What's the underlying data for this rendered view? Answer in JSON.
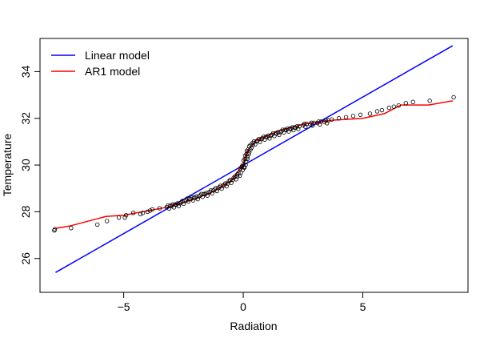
{
  "chart_data": {
    "type": "scatter",
    "title": "",
    "xlabel": "Radiation",
    "ylabel": "Temperature",
    "xlim": [
      -8.5,
      9.4
    ],
    "ylim": [
      24.55,
      35.42
    ],
    "xticks": [
      -5,
      0,
      5
    ],
    "yticks": [
      26,
      28,
      30,
      32,
      34
    ],
    "grid": false,
    "legend_position": "top-left",
    "points": [
      [
        -7.9,
        27.2
      ],
      [
        -7.88,
        27.25
      ],
      [
        -7.2,
        27.3
      ],
      [
        -6.1,
        27.45
      ],
      [
        -5.7,
        27.6
      ],
      [
        -5.2,
        27.75
      ],
      [
        -4.95,
        27.75
      ],
      [
        -4.9,
        27.85
      ],
      [
        -4.6,
        27.95
      ],
      [
        -4.3,
        27.9
      ],
      [
        -4.2,
        27.95
      ],
      [
        -4.0,
        28.0
      ],
      [
        -3.9,
        28.05
      ],
      [
        -3.8,
        28.1
      ],
      [
        -3.5,
        28.15
      ],
      [
        -3.2,
        28.2
      ],
      [
        -3.0,
        28.25
      ],
      [
        -2.8,
        28.3
      ],
      [
        -2.6,
        28.4
      ],
      [
        -2.4,
        28.5
      ],
      [
        -2.2,
        28.55
      ],
      [
        -2.0,
        28.6
      ],
      [
        -1.8,
        28.7
      ],
      [
        -1.6,
        28.75
      ],
      [
        -1.4,
        28.85
      ],
      [
        -1.2,
        28.95
      ],
      [
        -1.0,
        29.05
      ],
      [
        -0.8,
        29.15
      ],
      [
        -0.6,
        29.3
      ],
      [
        -0.4,
        29.45
      ],
      [
        -0.25,
        29.6
      ],
      [
        -0.12,
        29.85
      ],
      [
        -0.05,
        29.95
      ],
      [
        0.02,
        30.2
      ],
      [
        0.08,
        30.4
      ],
      [
        0.15,
        30.6
      ],
      [
        0.25,
        30.8
      ],
      [
        0.4,
        30.95
      ],
      [
        0.6,
        31.05
      ],
      [
        0.8,
        31.15
      ],
      [
        1.0,
        31.2
      ],
      [
        1.2,
        31.3
      ],
      [
        1.4,
        31.35
      ],
      [
        1.6,
        31.45
      ],
      [
        1.8,
        31.5
      ],
      [
        2.0,
        31.55
      ],
      [
        2.2,
        31.6
      ],
      [
        2.5,
        31.7
      ],
      [
        2.8,
        31.75
      ],
      [
        3.1,
        31.8
      ],
      [
        3.4,
        31.85
      ],
      [
        3.7,
        31.95
      ],
      [
        4.0,
        32.0
      ],
      [
        4.3,
        32.05
      ],
      [
        4.6,
        32.1
      ],
      [
        4.9,
        32.15
      ],
      [
        5.3,
        32.2
      ],
      [
        5.6,
        32.3
      ],
      [
        5.8,
        32.35
      ],
      [
        6.1,
        32.45
      ],
      [
        6.3,
        32.5
      ],
      [
        6.5,
        32.55
      ],
      [
        6.8,
        32.65
      ],
      [
        7.1,
        32.7
      ],
      [
        7.8,
        32.75
      ],
      [
        8.8,
        32.9
      ]
    ],
    "series": [
      {
        "name": "Linear model",
        "color": "#0000ff",
        "type": "line",
        "x": [
          -7.85,
          8.76
        ],
        "y": [
          25.4,
          35.11
        ]
      },
      {
        "name": "AR1 model",
        "color": "#ff0000",
        "type": "line",
        "x": [
          -7.85,
          -7.25,
          -5.74,
          -5.0,
          -3.8,
          -3.15,
          -2.15,
          -1.3,
          -0.47,
          -0.13,
          0,
          0.13,
          0.54,
          1.54,
          2.55,
          3.72,
          5.0,
          5.9,
          6.6,
          7.75,
          8.76
        ],
        "y": [
          27.29,
          27.39,
          27.8,
          27.85,
          28.08,
          28.2,
          28.5,
          28.85,
          29.35,
          29.86,
          30.03,
          30.55,
          31.06,
          31.48,
          31.75,
          31.92,
          32.0,
          32.2,
          32.57,
          32.57,
          32.75
        ]
      }
    ]
  }
}
